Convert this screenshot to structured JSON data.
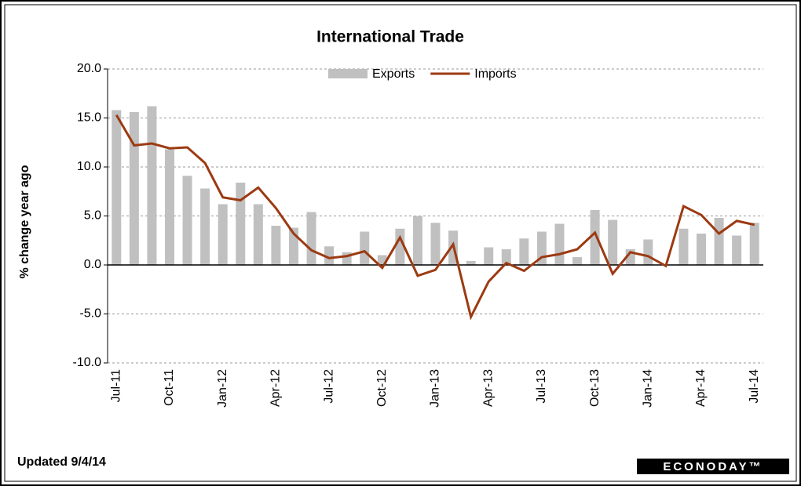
{
  "chart_data": {
    "type": "bar_line",
    "title": "International Trade",
    "y_label": "% change year ago",
    "footnote": "Updated  9/4/14",
    "logo": "ECONODAY™",
    "categories": [
      "Jul-11",
      null,
      null,
      "Oct-11",
      null,
      null,
      "Jan-12",
      null,
      null,
      "Apr-12",
      null,
      null,
      "Jul-12",
      null,
      null,
      "Oct-12",
      null,
      null,
      "Jan-13",
      null,
      null,
      "Apr-13",
      null,
      null,
      "Jul-13",
      null,
      null,
      "Oct-13",
      null,
      null,
      "Jan-14",
      null,
      null,
      "Apr-14",
      null,
      null,
      "Jul-14"
    ],
    "series": [
      {
        "name": "Exports",
        "type": "bar",
        "color": "#c0c0c0",
        "values": [
          15.8,
          15.6,
          16.2,
          11.8,
          9.1,
          7.8,
          6.2,
          8.4,
          6.2,
          4.0,
          3.8,
          5.4,
          1.9,
          1.3,
          3.4,
          1.0,
          3.7,
          5.0,
          4.3,
          3.5,
          0.4,
          1.8,
          1.6,
          2.7,
          3.4,
          4.2,
          0.8,
          5.6,
          4.6,
          1.6,
          2.6,
          0.0,
          3.7,
          3.2,
          4.8,
          3.0,
          4.3
        ]
      },
      {
        "name": "Imports",
        "type": "line",
        "color": "#9c3a12",
        "values": [
          15.3,
          12.2,
          12.4,
          11.9,
          12.0,
          10.4,
          6.9,
          6.6,
          7.9,
          5.8,
          3.2,
          1.5,
          0.7,
          0.9,
          1.4,
          -0.3,
          2.8,
          -1.1,
          -0.5,
          2.1,
          -5.3,
          -1.7,
          0.2,
          -0.6,
          0.8,
          1.1,
          1.6,
          3.3,
          -0.9,
          1.3,
          0.9,
          -0.1,
          6.0,
          5.1,
          3.2,
          4.5,
          4.1
        ]
      }
    ],
    "ylim": [
      -10,
      20
    ],
    "yticks": [
      {
        "value": -10,
        "label": "-10.0"
      },
      {
        "value": -5,
        "label": "-5.0"
      },
      {
        "value": 0,
        "label": "0.0"
      },
      {
        "value": 5,
        "label": "5.0"
      },
      {
        "value": 10,
        "label": "10.0"
      },
      {
        "value": 15,
        "label": "15.0"
      },
      {
        "value": 20,
        "label": "20.0"
      }
    ],
    "grid": true,
    "legend": "top"
  }
}
